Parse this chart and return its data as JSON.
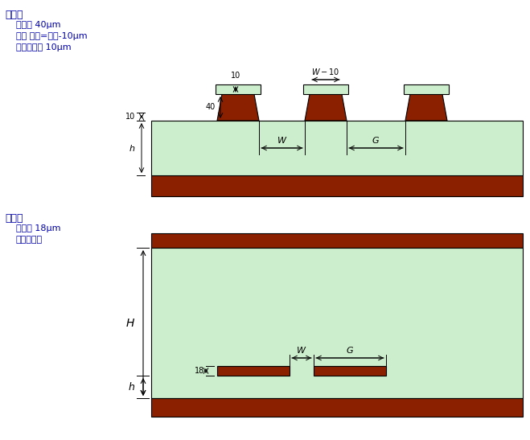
{
  "bg_color": "#ffffff",
  "light_green": "#cceecc",
  "dark_red": "#8B2000",
  "line_color": "#000000",
  "blue_text": "#0000aa",
  "fig_width": 6.59,
  "fig_height": 5.47,
  "label_1": "表面層",
  "label_2": "導体厘 40μm",
  "label_3": "台形 上底=下底-10μm",
  "label_4": "レジスト厘 10μm",
  "label_5": "中間層",
  "label_6": "導体厘 18μm",
  "label_7": "長方形導体"
}
